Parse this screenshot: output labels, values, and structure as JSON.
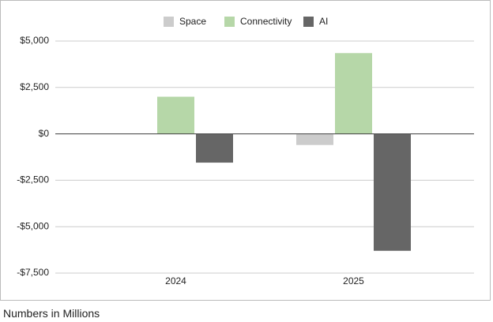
{
  "chart_data": {
    "type": "bar",
    "categories": [
      "2024",
      "2025"
    ],
    "series": [
      {
        "name": "Space",
        "color": "#cccccc",
        "values": [
          null,
          -600
        ]
      },
      {
        "name": "Connectivity",
        "color": "#b6d7a8",
        "values": [
          2000,
          4350
        ]
      },
      {
        "name": "AI",
        "color": "#666666",
        "values": [
          -1550,
          -6300
        ]
      }
    ],
    "ylim": [
      -7500,
      5000
    ],
    "yticks": [
      {
        "value": -7500,
        "label": "-$7,500"
      },
      {
        "value": -5000,
        "label": "-$5,000"
      },
      {
        "value": -2500,
        "label": "-$2,500"
      },
      {
        "value": 0,
        "label": "$0"
      },
      {
        "value": 2500,
        "label": "$2,500"
      },
      {
        "value": 5000,
        "label": "$5,000"
      }
    ],
    "grid": true,
    "legend": "top",
    "note": "Numbers in Millions"
  }
}
